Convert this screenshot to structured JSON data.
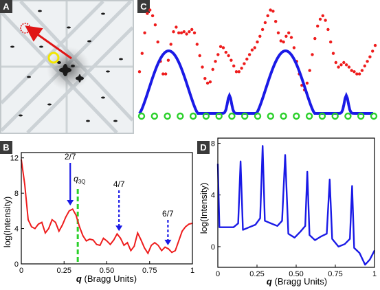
{
  "panels": {
    "A": {
      "label": "A"
    },
    "B": {
      "label": "B"
    },
    "C": {
      "label": "C"
    },
    "D": {
      "label": "D"
    }
  },
  "chart_data": [
    {
      "panel": "B",
      "type": "line",
      "xlabel_q": "q",
      "xlabel_rest": "(Bragg Units)",
      "ylabel": "log(Intensity)",
      "xlim": [
        0,
        1
      ],
      "ylim": [
        0,
        12.6
      ],
      "xticks": [
        0,
        0.25,
        0.5,
        0.75,
        1
      ],
      "xtick_labels": [
        "0",
        "0.25",
        "0.50",
        "0.75",
        "1"
      ],
      "yticks": [
        0,
        4,
        8,
        12
      ],
      "ytick_labels": [
        "0",
        "4",
        "8",
        "12"
      ],
      "color": "#ee1c1c",
      "x": [
        0,
        0.02,
        0.04,
        0.06,
        0.08,
        0.1,
        0.12,
        0.14,
        0.16,
        0.18,
        0.2,
        0.22,
        0.24,
        0.26,
        0.28,
        0.3,
        0.32,
        0.34,
        0.36,
        0.38,
        0.4,
        0.42,
        0.44,
        0.46,
        0.48,
        0.5,
        0.52,
        0.54,
        0.56,
        0.58,
        0.6,
        0.62,
        0.64,
        0.66,
        0.68,
        0.7,
        0.72,
        0.74,
        0.76,
        0.78,
        0.8,
        0.82,
        0.84,
        0.86,
        0.88,
        0.9,
        0.92,
        0.94,
        0.96,
        0.98,
        1.0
      ],
      "y": [
        11.8,
        9.0,
        5.0,
        4.2,
        4.0,
        4.5,
        4.7,
        3.5,
        4.0,
        5.0,
        4.7,
        3.7,
        4.4,
        5.3,
        6.0,
        6.2,
        5.5,
        4.2,
        3.2,
        2.6,
        2.8,
        2.7,
        2.2,
        2.1,
        2.9,
        2.6,
        2.2,
        2.7,
        3.4,
        2.9,
        2.1,
        2.4,
        1.5,
        2.0,
        3.5,
        2.7,
        1.8,
        1.2,
        2.1,
        2.4,
        2.1,
        1.5,
        1.9,
        1.7,
        1.3,
        1.5,
        2.6,
        3.7,
        4.2,
        4.5,
        4.6
      ],
      "marker_label": "q",
      "marker_sub": "3Q",
      "marker_x": 0.33,
      "annotations": [
        {
          "text": "2/7",
          "x": 0.286,
          "y_tip": 6.3,
          "style": "solid"
        },
        {
          "text": "4/7",
          "x": 0.571,
          "y_tip": 3.4,
          "style": "dashed"
        },
        {
          "text": "6/7",
          "x": 0.857,
          "y_tip": 1.8,
          "style": "dashed"
        }
      ]
    },
    {
      "panel": "D",
      "type": "line",
      "xlabel_q": "q",
      "xlabel_rest": "(Bragg Units)",
      "ylabel": "log(Intensity)",
      "xlim": [
        0,
        1
      ],
      "ylim": [
        -1.6,
        8.4
      ],
      "xticks": [
        0,
        0.25,
        0.5,
        0.75,
        1
      ],
      "xtick_labels": [
        "0",
        "0.25",
        "0.50",
        "0.75",
        "1"
      ],
      "yticks": [
        0,
        4,
        8
      ],
      "ytick_labels": [
        "0",
        "4",
        "8"
      ],
      "color": "#1a1ae6",
      "x": [
        0,
        0.01,
        0.05,
        0.1,
        0.13,
        0.145,
        0.16,
        0.2,
        0.24,
        0.27,
        0.286,
        0.3,
        0.34,
        0.38,
        0.41,
        0.43,
        0.45,
        0.49,
        0.53,
        0.558,
        0.571,
        0.585,
        0.62,
        0.66,
        0.695,
        0.714,
        0.73,
        0.77,
        0.81,
        0.843,
        0.857,
        0.87,
        0.905,
        0.94,
        0.97,
        1.0
      ],
      "y": [
        6.4,
        1.5,
        1.5,
        1.5,
        1.8,
        6.6,
        1.3,
        1.5,
        1.7,
        2.2,
        7.8,
        2.0,
        1.8,
        1.6,
        2.0,
        7.1,
        1.0,
        0.7,
        1.2,
        1.6,
        5.8,
        0.9,
        0.5,
        0.8,
        1.0,
        5.2,
        0.6,
        0.0,
        0.2,
        0.6,
        4.7,
        -0.1,
        -0.5,
        -1.4,
        -1.0,
        -0.3
      ]
    },
    {
      "panel": "C",
      "type": "scatter",
      "series": [
        {
          "color": "#ee1c1c",
          "y": [
            4.2,
            5.8,
            7.6,
            9.3,
            9.6,
            9.1,
            8.3,
            6.8,
            5.1,
            4.0,
            4.0,
            5.2,
            6.6,
            7.7,
            8.1,
            7.6,
            7.6,
            7.7,
            7.5,
            7.7,
            7.9,
            7.6,
            6.6,
            5.6,
            4.6,
            3.6,
            3.2,
            3.3,
            4.4,
            5.1,
            5.7,
            6.4,
            6.3,
            5.9,
            5.6,
            5.2,
            4.7,
            4.2,
            4.2,
            4.5,
            4.9,
            5.3,
            5.7,
            6.1,
            6.3,
            6.8,
            7.3,
            7.9,
            8.5,
            9.1,
            9.6,
            9.5,
            8.6,
            7.6,
            6.9,
            6.8,
            7.3,
            7.6,
            7.2,
            6.3,
            5.1,
            4.0,
            3.0,
            2.6,
            3.2,
            4.3,
            5.7,
            7.1,
            8.2,
            8.8,
            9.1,
            8.7,
            7.9,
            6.8,
            5.8,
            5.0,
            4.6,
            4.8,
            5.0,
            4.8,
            4.6,
            4.3,
            4.2,
            4.0,
            4.0,
            4.3,
            4.7,
            5.1,
            5.5,
            6.0,
            6.5
          ]
        },
        {
          "color": "#2ad02a",
          "y": [
            0.3,
            0.3,
            0.3,
            0.3,
            0.3,
            0.3,
            0.3,
            0.3,
            0.3,
            0.3,
            0.3,
            0.3,
            0.3,
            0.3,
            0.3,
            0.3,
            0.3,
            0.3,
            0.3
          ]
        }
      ],
      "curve_color": "#1a1ae6",
      "ylim": [
        0,
        10
      ]
    }
  ]
}
